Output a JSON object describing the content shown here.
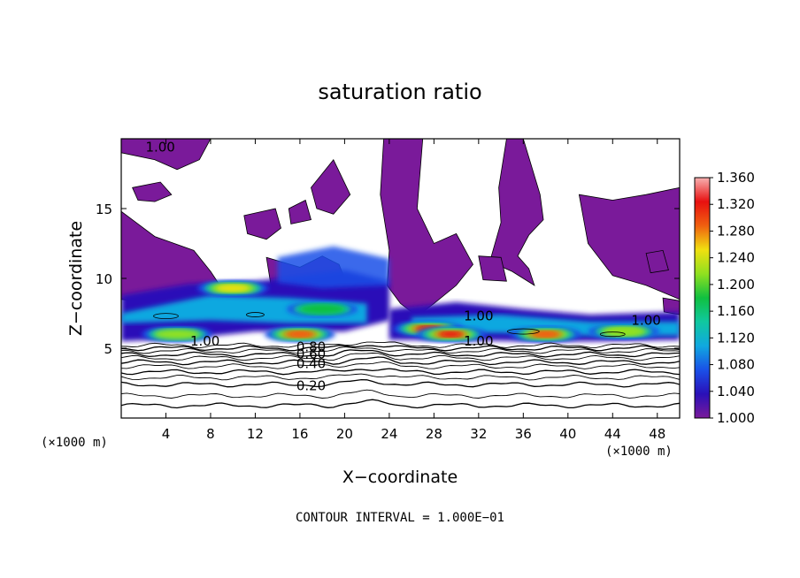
{
  "chart_data": {
    "type": "heatmap",
    "title": "saturation ratio",
    "xlabel": "X−coordinate",
    "ylabel": "Z−coordinate",
    "x_unit_label": "(×1000 m)",
    "x_unit_label_right": "(×1000 m)",
    "xlim": [
      0,
      50
    ],
    "ylim": [
      0,
      20
    ],
    "x_ticks": [
      4,
      8,
      12,
      16,
      20,
      24,
      28,
      32,
      36,
      40,
      44,
      48
    ],
    "x_tick_labels": [
      "4",
      "8",
      "12",
      "16",
      "20",
      "24",
      "28",
      "32",
      "36",
      "40",
      "44",
      "48"
    ],
    "y_ticks": [
      5,
      10,
      15
    ],
    "y_tick_labels": [
      "5",
      "10",
      "15"
    ],
    "footer": "CONTOUR INTERVAL = 1.000E−01",
    "colorbar": {
      "min": 1.0,
      "max": 1.36,
      "tick_values": [
        1.0,
        1.04,
        1.08,
        1.12,
        1.16,
        1.2,
        1.24,
        1.28,
        1.32,
        1.36
      ],
      "tick_labels": [
        "1.000",
        "1.040",
        "1.080",
        "1.120",
        "1.160",
        "1.200",
        "1.240",
        "1.280",
        "1.320",
        "1.360"
      ],
      "colors": [
        "#7a1a9a",
        "#2a10b8",
        "#1a50e8",
        "#10a8e0",
        "#10c8a0",
        "#10c040",
        "#90e020",
        "#f0e010",
        "#f06010",
        "#e81010",
        "#f8b0b0"
      ]
    },
    "contour_labels": [
      {
        "text": "1.00",
        "x": 3.5,
        "y": 19.4
      },
      {
        "text": "1.00",
        "x": 7.5,
        "y": 5.5
      },
      {
        "text": "0.80",
        "x": 17.0,
        "y": 5.1
      },
      {
        "text": "0.60",
        "x": 17.0,
        "y": 4.6
      },
      {
        "text": "0.40",
        "x": 17.0,
        "y": 3.9
      },
      {
        "text": "0.20",
        "x": 17.0,
        "y": 2.3
      },
      {
        "text": "1.00",
        "x": 32.0,
        "y": 7.3
      },
      {
        "text": "1.00",
        "x": 32.0,
        "y": 5.5
      },
      {
        "text": "1.00",
        "x": 47.0,
        "y": 7.0
      }
    ],
    "contour_levels_z": [
      0.9,
      1.6,
      2.4,
      2.9,
      3.3,
      3.7,
      4.0,
      4.3,
      4.55,
      4.8,
      5.0,
      5.2
    ],
    "regions_ge_1": [
      {
        "z_range": [
          5.5,
          20.0
        ],
        "x_ranges": [
          [
            0,
            8
          ],
          [
            29,
            37
          ],
          [
            40,
            50
          ]
        ]
      }
    ],
    "hotspots": [
      {
        "x": 10,
        "y": 9.3,
        "value": 1.26
      },
      {
        "x": 16,
        "y": 6.0,
        "value": 1.3
      },
      {
        "x": 27.5,
        "y": 6.4,
        "value": 1.33
      },
      {
        "x": 29.5,
        "y": 6.0,
        "value": 1.32
      },
      {
        "x": 38,
        "y": 6.0,
        "value": 1.28
      },
      {
        "x": 45,
        "y": 6.2,
        "value": 1.22
      },
      {
        "x": 18,
        "y": 7.8,
        "value": 1.18
      },
      {
        "x": 5,
        "y": 6.0,
        "value": 1.2
      }
    ]
  }
}
